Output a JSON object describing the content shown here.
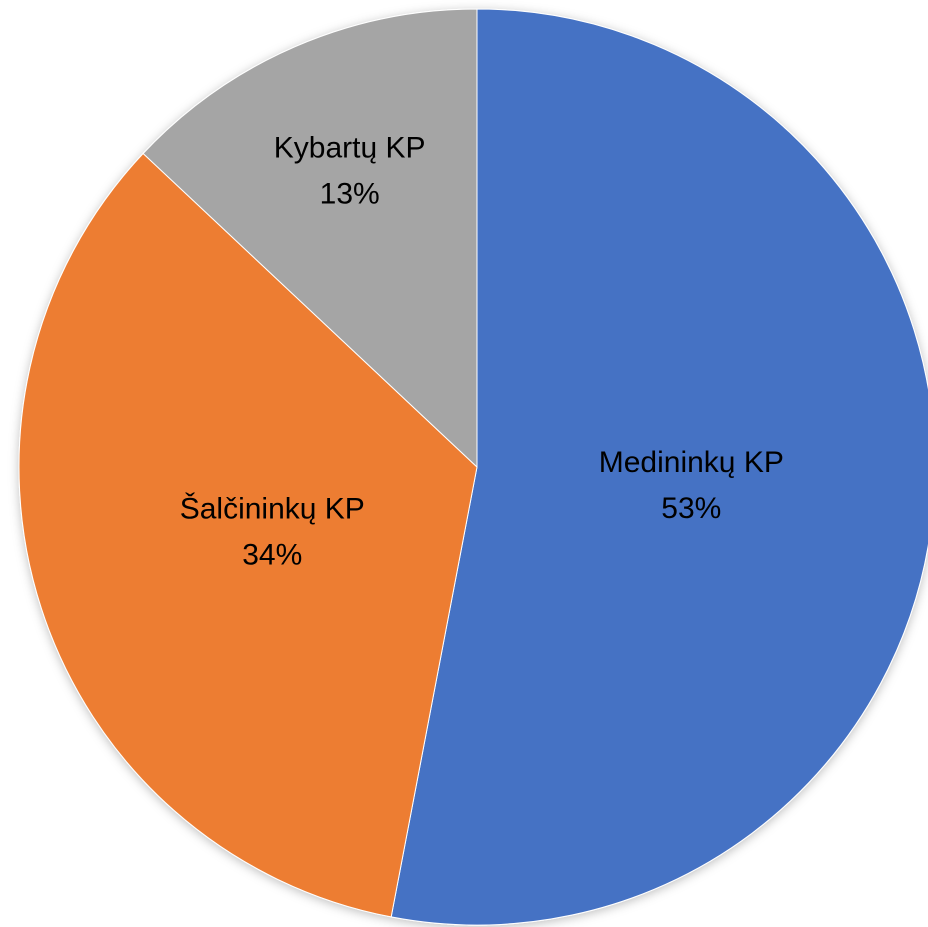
{
  "chart_data": {
    "type": "pie",
    "categories": [
      "Medininkų KP",
      "Šalčininkų KP",
      "Kybartų KP"
    ],
    "values": [
      53,
      34,
      13
    ],
    "value_labels": [
      "53%",
      "34%",
      "13%"
    ],
    "colors": [
      "#4472c4",
      "#ed7d31",
      "#a5a5a5"
    ]
  }
}
